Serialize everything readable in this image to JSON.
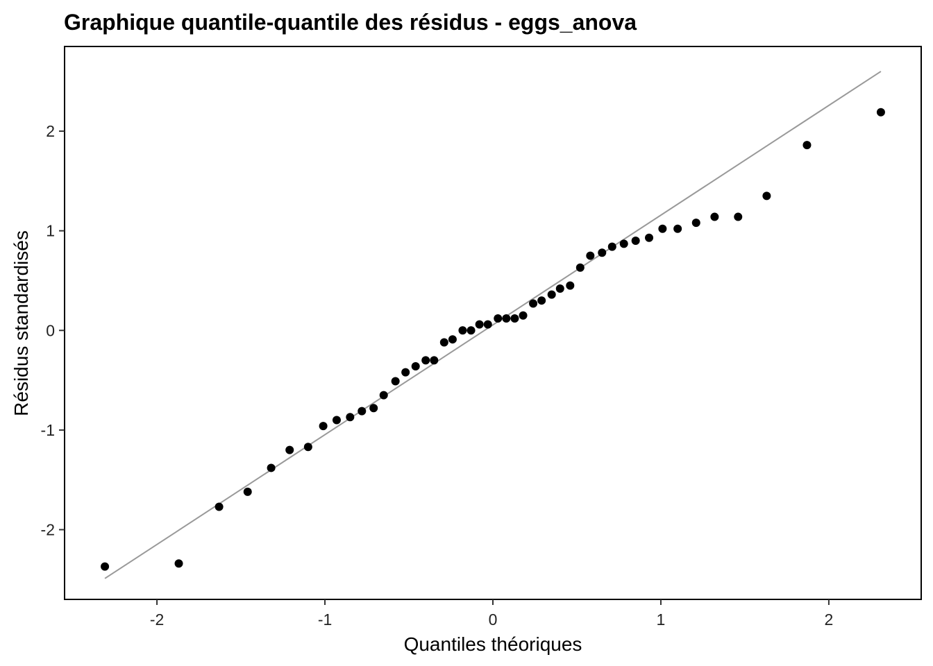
{
  "chart_data": {
    "type": "scatter",
    "title": "Graphique quantile-quantile des résidus - eggs_anova",
    "xlabel": "Quantiles théoriques",
    "ylabel": "Résidus standardisés",
    "xlim": [
      -2.55,
      2.55
    ],
    "ylim": [
      -2.7,
      2.85
    ],
    "x_ticks": [
      -2,
      -1,
      0,
      1,
      2
    ],
    "x_tick_labels": [
      "-2",
      "-1",
      "0",
      "1",
      "2"
    ],
    "y_ticks": [
      -2,
      -1,
      0,
      1,
      2
    ],
    "y_tick_labels": [
      "-2",
      "-1",
      "0",
      "1",
      "2"
    ],
    "grid": false,
    "reference_line": {
      "color": "#999999",
      "x": [
        -2.31,
        2.31
      ],
      "y": [
        -2.49,
        2.6
      ]
    },
    "point_color": "#000000",
    "points": [
      {
        "x": -2.31,
        "y": -2.37
      },
      {
        "x": -1.87,
        "y": -2.34
      },
      {
        "x": -1.63,
        "y": -1.77
      },
      {
        "x": -1.46,
        "y": -1.62
      },
      {
        "x": -1.32,
        "y": -1.38
      },
      {
        "x": -1.21,
        "y": -1.2
      },
      {
        "x": -1.1,
        "y": -1.17
      },
      {
        "x": -1.01,
        "y": -0.96
      },
      {
        "x": -0.93,
        "y": -0.9
      },
      {
        "x": -0.85,
        "y": -0.87
      },
      {
        "x": -0.78,
        "y": -0.81
      },
      {
        "x": -0.71,
        "y": -0.78
      },
      {
        "x": -0.65,
        "y": -0.65
      },
      {
        "x": -0.58,
        "y": -0.51
      },
      {
        "x": -0.52,
        "y": -0.42
      },
      {
        "x": -0.46,
        "y": -0.36
      },
      {
        "x": -0.4,
        "y": -0.3
      },
      {
        "x": -0.35,
        "y": -0.3
      },
      {
        "x": -0.29,
        "y": -0.12
      },
      {
        "x": -0.24,
        "y": -0.09
      },
      {
        "x": -0.18,
        "y": 0.0
      },
      {
        "x": -0.13,
        "y": 0.0
      },
      {
        "x": -0.08,
        "y": 0.06
      },
      {
        "x": -0.03,
        "y": 0.06
      },
      {
        "x": 0.03,
        "y": 0.12
      },
      {
        "x": 0.08,
        "y": 0.12
      },
      {
        "x": 0.13,
        "y": 0.12
      },
      {
        "x": 0.18,
        "y": 0.15
      },
      {
        "x": 0.24,
        "y": 0.27
      },
      {
        "x": 0.29,
        "y": 0.3
      },
      {
        "x": 0.35,
        "y": 0.36
      },
      {
        "x": 0.4,
        "y": 0.42
      },
      {
        "x": 0.46,
        "y": 0.45
      },
      {
        "x": 0.52,
        "y": 0.63
      },
      {
        "x": 0.58,
        "y": 0.75
      },
      {
        "x": 0.65,
        "y": 0.78
      },
      {
        "x": 0.71,
        "y": 0.84
      },
      {
        "x": 0.78,
        "y": 0.87
      },
      {
        "x": 0.85,
        "y": 0.9
      },
      {
        "x": 0.93,
        "y": 0.93
      },
      {
        "x": 1.01,
        "y": 1.02
      },
      {
        "x": 1.1,
        "y": 1.02
      },
      {
        "x": 1.21,
        "y": 1.08
      },
      {
        "x": 1.32,
        "y": 1.14
      },
      {
        "x": 1.46,
        "y": 1.14
      },
      {
        "x": 1.63,
        "y": 1.35
      },
      {
        "x": 1.87,
        "y": 1.86
      },
      {
        "x": 2.31,
        "y": 2.19
      }
    ]
  }
}
